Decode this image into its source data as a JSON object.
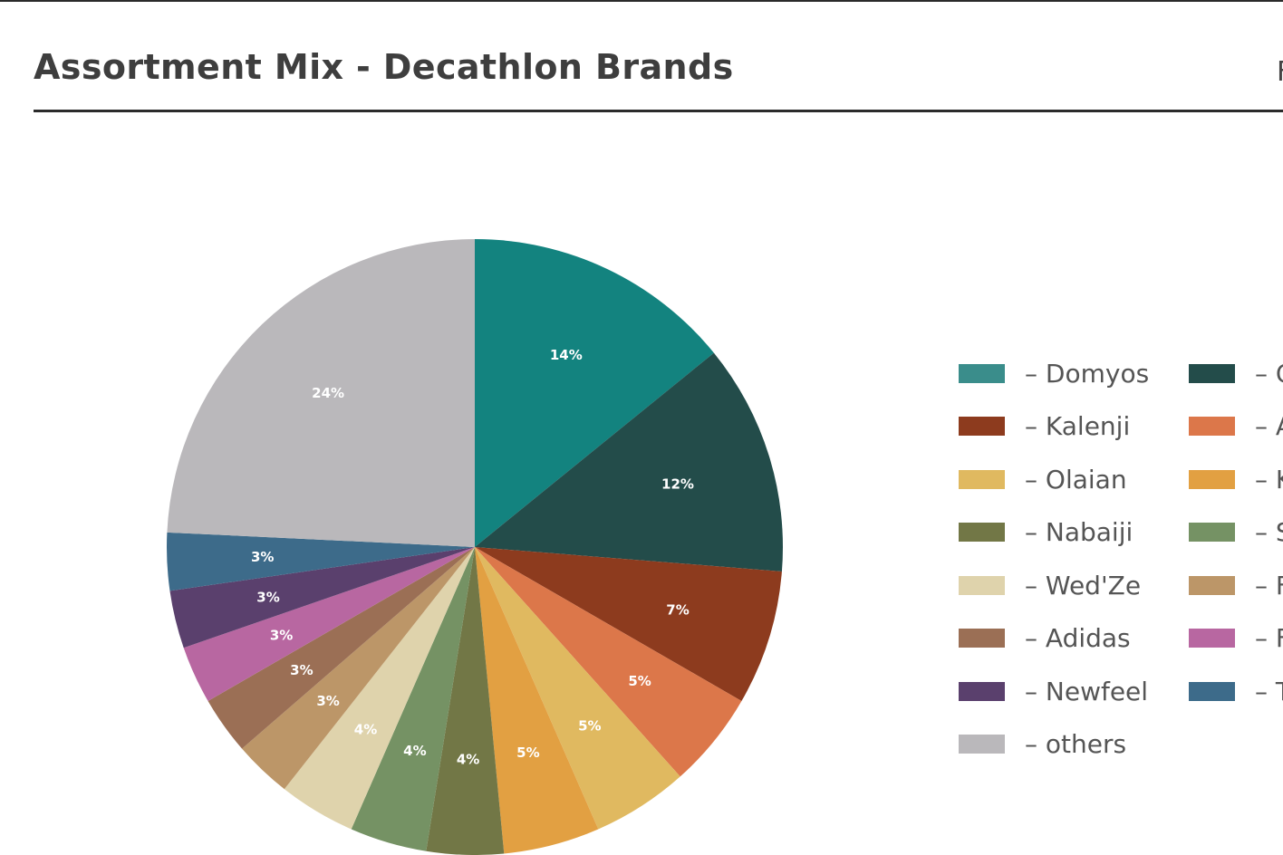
{
  "header": {
    "title": "Assortment Mix - Decathlon Brands",
    "cut_text": "F"
  },
  "chart_data": {
    "type": "pie",
    "title": "Assortment Mix - Decathlon Brands",
    "start_angle_deg": 0,
    "direction": "clockwise",
    "slices": [
      {
        "name": "Domyos",
        "value": 14,
        "label": "14%",
        "color": "#13837f"
      },
      {
        "name": "",
        "value": 12,
        "label": "12%",
        "color": "#234c4a"
      },
      {
        "name": "Kalenji",
        "value": 7,
        "label": "7%",
        "color": "#8d3b1e"
      },
      {
        "name": "",
        "value": 5,
        "label": "5%",
        "color": "#dc774a"
      },
      {
        "name": "Olaian",
        "value": 5,
        "label": "5%",
        "color": "#e0b960"
      },
      {
        "name": "",
        "value": 5,
        "label": "5%",
        "color": "#e2a042"
      },
      {
        "name": "Nabaiji",
        "value": 4,
        "label": "4%",
        "color": "#727746"
      },
      {
        "name": "",
        "value": 4,
        "label": "4%",
        "color": "#759264"
      },
      {
        "name": "Wed'Ze",
        "value": 4,
        "label": "4%",
        "color": "#dfd3ac"
      },
      {
        "name": "",
        "value": 3,
        "label": "3%",
        "color": "#bc9668"
      },
      {
        "name": "Adidas",
        "value": 3,
        "label": "3%",
        "color": "#9b6f55"
      },
      {
        "name": "",
        "value": 3,
        "label": "3%",
        "color": "#b867a1"
      },
      {
        "name": "Newfeel",
        "value": 3,
        "label": "3%",
        "color": "#5a406d"
      },
      {
        "name": "",
        "value": 3,
        "label": "3%",
        "color": "#3d6b8a"
      },
      {
        "name": "others",
        "value": 24,
        "label": "24%",
        "color": "#bab8bb"
      }
    ],
    "legend": {
      "position": "right",
      "columns": [
        [
          {
            "text": "– Domyos",
            "color": "#3a8d8b"
          },
          {
            "text": "– Kalenji",
            "color": "#8d3b1e"
          },
          {
            "text": "– Olaian",
            "color": "#e0b960"
          },
          {
            "text": "– Nabaiji",
            "color": "#727746"
          },
          {
            "text": "– Wed'Ze",
            "color": "#dfd3ac"
          },
          {
            "text": "– Adidas",
            "color": "#9b6f55"
          },
          {
            "text": "– Newfeel",
            "color": "#5a406d"
          },
          {
            "text": "– others",
            "color": "#bab8bb"
          }
        ],
        [
          {
            "text": "– C",
            "color": "#234c4a"
          },
          {
            "text": "– A",
            "color": "#dc774a"
          },
          {
            "text": "– K",
            "color": "#e2a042"
          },
          {
            "text": "– S",
            "color": "#759264"
          },
          {
            "text": "– F",
            "color": "#bc9668"
          },
          {
            "text": "– F",
            "color": "#b867a1"
          },
          {
            "text": "– T",
            "color": "#3d6b8a"
          }
        ]
      ]
    }
  }
}
